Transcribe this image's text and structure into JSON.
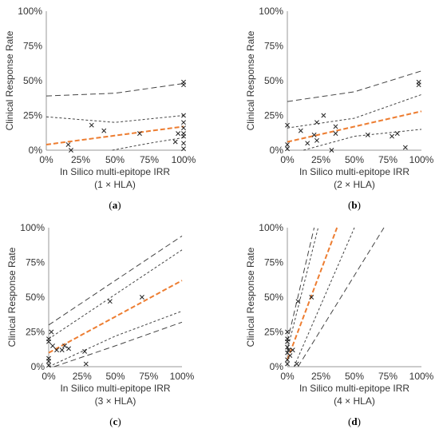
{
  "chart_data": [
    {
      "type": "scatter",
      "panel_label": "a",
      "xlabel": "In Silico multi-epitope IRR",
      "xlabel_sub": "(1 × HLA)",
      "ylabel": "Clinical Response Rate",
      "xlim": [
        0,
        1
      ],
      "ylim": [
        0,
        1
      ],
      "xticks": [
        "0%",
        "25%",
        "50%",
        "75%",
        "100%"
      ],
      "yticks": [
        "0%",
        "25%",
        "50%",
        "75%",
        "100%"
      ],
      "points": [
        [
          0.16,
          0.04
        ],
        [
          0.18,
          0.0
        ],
        [
          0.33,
          0.18
        ],
        [
          0.42,
          0.14
        ],
        [
          0.68,
          0.12
        ],
        [
          0.94,
          0.06
        ],
        [
          0.96,
          0.12
        ],
        [
          1.0,
          0.49
        ],
        [
          1.0,
          0.47
        ],
        [
          1.0,
          0.25
        ],
        [
          1.0,
          0.2
        ],
        [
          1.0,
          0.16
        ],
        [
          1.0,
          0.12
        ],
        [
          1.0,
          0.1
        ],
        [
          1.0,
          0.05
        ],
        [
          1.0,
          0.01
        ]
      ],
      "trend": [
        [
          0,
          0.04
        ],
        [
          1,
          0.17
        ]
      ],
      "inner_band": {
        "upper": [
          [
            0,
            0.24
          ],
          [
            0.5,
            0.2
          ],
          [
            1,
            0.25
          ]
        ],
        "lower": [
          [
            0.48,
            0.0
          ],
          [
            0.75,
            0.05
          ],
          [
            1,
            0.09
          ]
        ]
      },
      "outer_band": {
        "upper": [
          [
            0,
            0.39
          ],
          [
            0.5,
            0.41
          ],
          [
            1,
            0.48
          ]
        ],
        "lower": []
      }
    },
    {
      "type": "scatter",
      "panel_label": "b",
      "xlabel": "In Silico multi-epitope IRR",
      "xlabel_sub": "(2 × HLA)",
      "ylabel": "Clinical Response Rate",
      "xlim": [
        0,
        1
      ],
      "ylim": [
        0,
        1
      ],
      "xticks": [
        "0%",
        "25%",
        "50%",
        "75%",
        "100%"
      ],
      "yticks": [
        "0%",
        "25%",
        "50%",
        "75%",
        "100%"
      ],
      "points": [
        [
          0.0,
          0.18
        ],
        [
          0.0,
          0.04
        ],
        [
          0.0,
          0.01
        ],
        [
          0.1,
          0.14
        ],
        [
          0.15,
          0.05
        ],
        [
          0.2,
          0.11
        ],
        [
          0.22,
          0.07
        ],
        [
          0.27,
          0.25
        ],
        [
          0.22,
          0.2
        ],
        [
          0.36,
          0.17
        ],
        [
          0.36,
          0.12
        ],
        [
          0.33,
          0.0
        ],
        [
          0.6,
          0.11
        ],
        [
          0.78,
          0.1
        ],
        [
          0.82,
          0.12
        ],
        [
          0.88,
          0.02
        ],
        [
          0.98,
          0.49
        ],
        [
          0.98,
          0.47
        ]
      ],
      "trend": [
        [
          0,
          0.06
        ],
        [
          1,
          0.28
        ]
      ],
      "inner_band": {
        "upper": [
          [
            0,
            0.16
          ],
          [
            0.5,
            0.23
          ],
          [
            1,
            0.4
          ]
        ],
        "lower": [
          [
            0.12,
            0.0
          ],
          [
            0.5,
            0.1
          ],
          [
            1,
            0.15
          ]
        ]
      },
      "outer_band": {
        "upper": [
          [
            0,
            0.35
          ],
          [
            0.5,
            0.42
          ],
          [
            1,
            0.57
          ]
        ],
        "lower": []
      }
    },
    {
      "type": "scatter",
      "panel_label": "c",
      "xlabel": "In Silico multi-epitope IRR",
      "xlabel_sub": "(3 × HLA)",
      "ylabel": "Clinical Response Rate",
      "xlim": [
        0,
        1
      ],
      "ylim": [
        0,
        1
      ],
      "xticks": [
        "0%",
        "25%",
        "50%",
        "75%",
        "100%"
      ],
      "yticks": [
        "0%",
        "25%",
        "50%",
        "75%",
        "100%"
      ],
      "points": [
        [
          0.0,
          0.2
        ],
        [
          0.0,
          0.18
        ],
        [
          0.0,
          0.06
        ],
        [
          0.0,
          0.04
        ],
        [
          0.0,
          0.01
        ],
        [
          0.02,
          0.25
        ],
        [
          0.03,
          0.15
        ],
        [
          0.06,
          0.12
        ],
        [
          0.1,
          0.12
        ],
        [
          0.12,
          0.15
        ],
        [
          0.15,
          0.13
        ],
        [
          0.27,
          0.11
        ],
        [
          0.28,
          0.02
        ],
        [
          0.46,
          0.47
        ],
        [
          0.7,
          0.5
        ]
      ],
      "trend": [
        [
          0,
          0.1
        ],
        [
          1,
          0.62
        ]
      ],
      "inner_band": {
        "upper": [
          [
            0,
            0.2
          ],
          [
            0.5,
            0.52
          ],
          [
            1,
            0.84
          ]
        ],
        "lower": [
          [
            0,
            0.0
          ],
          [
            0.5,
            0.22
          ],
          [
            1,
            0.4
          ]
        ]
      },
      "outer_band": {
        "upper": [
          [
            0,
            0.3
          ],
          [
            0.5,
            0.62
          ],
          [
            1,
            0.94
          ]
        ],
        "lower": [
          [
            0.04,
            0.0
          ],
          [
            0.5,
            0.15
          ],
          [
            1,
            0.32
          ]
        ]
      }
    },
    {
      "type": "scatter",
      "panel_label": "d",
      "xlabel": "In Silico multi-epitope IRR",
      "xlabel_sub": "(4 × HLA)",
      "ylabel": "Clinical Response Rate",
      "xlim": [
        0,
        1
      ],
      "ylim": [
        0,
        1
      ],
      "xticks": [
        "0%",
        "25%",
        "50%",
        "75%",
        "100%"
      ],
      "yticks": [
        "0%",
        "25%",
        "50%",
        "75%",
        "100%"
      ],
      "points": [
        [
          0.0,
          0.25
        ],
        [
          0.0,
          0.2
        ],
        [
          0.0,
          0.18
        ],
        [
          0.0,
          0.14
        ],
        [
          0.0,
          0.1
        ],
        [
          0.0,
          0.05
        ],
        [
          0.0,
          0.02
        ],
        [
          0.01,
          0.12
        ],
        [
          0.02,
          0.08
        ],
        [
          0.04,
          0.12
        ],
        [
          0.07,
          0.02
        ],
        [
          0.08,
          0.47
        ],
        [
          0.18,
          0.5
        ]
      ],
      "trend": [
        [
          0,
          0.05
        ],
        [
          0.37,
          1.0
        ]
      ],
      "inner_band": {
        "upper": [
          [
            0,
            0.12
          ],
          [
            0.23,
            1.0
          ]
        ],
        "lower": [
          [
            0.05,
            0.0
          ],
          [
            0.5,
            1.0
          ]
        ]
      },
      "outer_band": {
        "upper": [
          [
            0,
            0.18
          ],
          [
            0.2,
            1.0
          ]
        ],
        "lower": [
          [
            0.08,
            0.0
          ],
          [
            0.72,
            1.0
          ]
        ]
      }
    }
  ]
}
